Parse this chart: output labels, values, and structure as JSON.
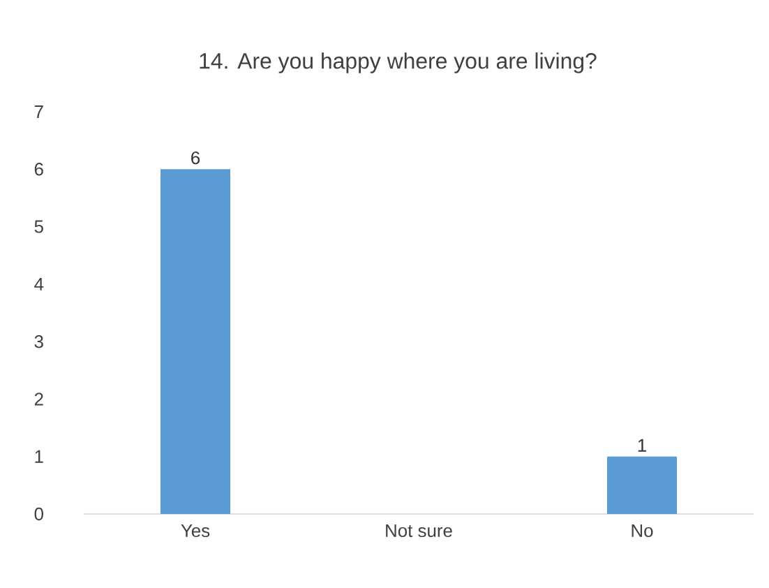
{
  "chart_data": {
    "type": "bar",
    "title": "14. Are you happy where you are living?",
    "categories": [
      "Yes",
      "Not sure",
      "No"
    ],
    "values": [
      6,
      0,
      1
    ],
    "value_labels": [
      "6",
      null,
      "1"
    ],
    "color": "#5b9bd5",
    "ylim": [
      0,
      7
    ],
    "yticks": [
      0,
      1,
      2,
      3,
      4,
      5,
      6,
      7
    ]
  }
}
